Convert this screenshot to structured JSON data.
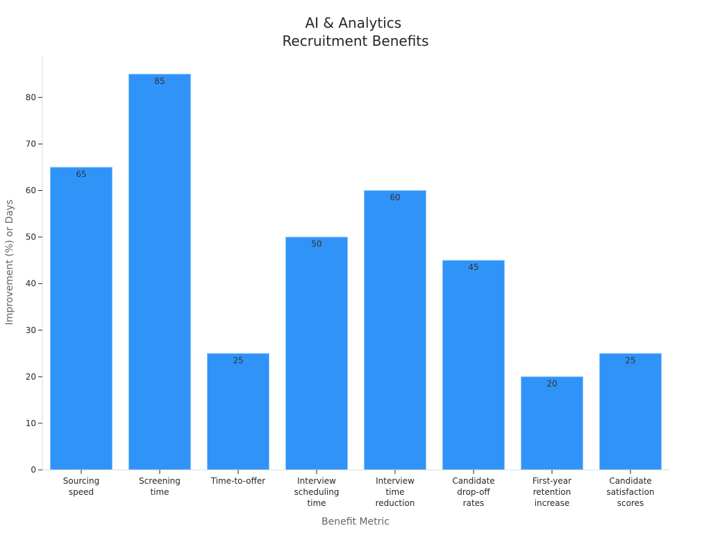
{
  "chart_data": {
    "type": "bar",
    "title": [
      "AI & Analytics",
      "Recruitment Benefits"
    ],
    "xlabel": "Benefit Metric",
    "ylabel": "Improvement (%) or Days",
    "categories": [
      [
        "Sourcing",
        "speed"
      ],
      [
        "Screening",
        "time"
      ],
      [
        "Time-to-offer"
      ],
      [
        "Interview",
        "scheduling",
        "time"
      ],
      [
        "Interview",
        "time",
        "reduction"
      ],
      [
        "Candidate",
        "drop-off",
        "rates"
      ],
      [
        "First-year",
        "retention",
        "increase"
      ],
      [
        "Candidate",
        "satisfaction",
        "scores"
      ]
    ],
    "values": [
      65,
      85,
      25,
      50,
      60,
      45,
      20,
      25
    ],
    "yticks": [
      0,
      10,
      20,
      30,
      40,
      50,
      60,
      70,
      80
    ],
    "ylim": [
      0,
      89
    ],
    "grid": false,
    "bar_color": "#2f93f8"
  }
}
